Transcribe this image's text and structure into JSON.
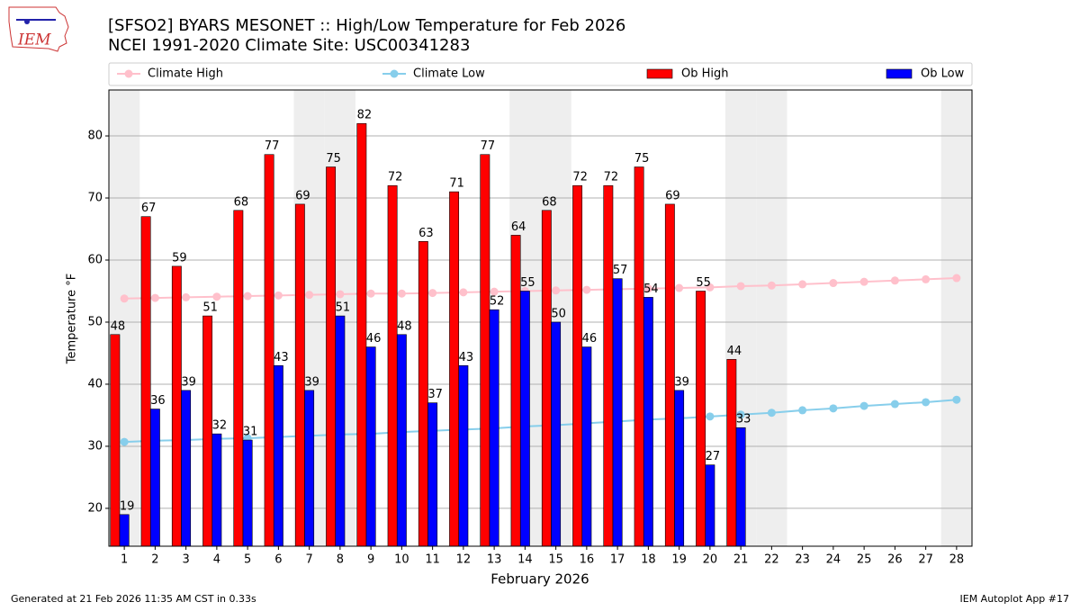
{
  "logo_text": "IEM",
  "footer": {
    "left": "Generated at 21 Feb 2026 11:35 AM CST in 0.33s",
    "right": "IEM Autoplot App #17"
  },
  "chart_data": {
    "type": "bar",
    "title": "[SFSO2] BYARS MESONET :: High/Low Temperature for Feb 2026",
    "subtitle": "NCEI 1991-2020 Climate Site: USC00341283",
    "x_label": "February 2026",
    "y_label": "Temperature °F",
    "x": [
      1,
      2,
      3,
      4,
      5,
      6,
      7,
      8,
      9,
      10,
      11,
      12,
      13,
      14,
      15,
      16,
      17,
      18,
      19,
      20,
      21,
      22,
      23,
      24,
      25,
      26,
      27,
      28
    ],
    "xlim": [
      0.5,
      28.5
    ],
    "xticks": [
      1,
      2,
      3,
      4,
      5,
      6,
      7,
      8,
      9,
      10,
      11,
      12,
      13,
      14,
      15,
      16,
      17,
      18,
      19,
      20,
      21,
      22,
      23,
      24,
      25,
      26,
      27,
      28
    ],
    "ylim": [
      13.9,
      87.4
    ],
    "yticks": [
      20,
      30,
      40,
      50,
      60,
      70,
      80
    ],
    "grid": true,
    "shaded_days": [
      1,
      7,
      8,
      14,
      15,
      21,
      22,
      28
    ],
    "series": [
      {
        "name": "Climate High",
        "type": "line",
        "color": "#ffc0cb",
        "values": [
          53.8,
          53.9,
          54.0,
          54.1,
          54.2,
          54.3,
          54.4,
          54.5,
          54.6,
          54.6,
          54.7,
          54.8,
          54.9,
          55.0,
          55.1,
          55.2,
          55.3,
          55.4,
          55.5,
          55.6,
          55.8,
          55.9,
          56.1,
          56.3,
          56.5,
          56.7,
          56.9,
          57.1
        ]
      },
      {
        "name": "Climate Low",
        "type": "line",
        "color": "#87ceeb",
        "values": [
          30.7,
          30.9,
          31.0,
          31.2,
          31.3,
          31.5,
          31.7,
          31.9,
          32.0,
          32.3,
          32.5,
          32.7,
          32.9,
          33.2,
          33.4,
          33.7,
          34.0,
          34.3,
          34.5,
          34.8,
          35.1,
          35.4,
          35.8,
          36.1,
          36.5,
          36.8,
          37.1,
          37.5
        ]
      },
      {
        "name": "Ob High",
        "type": "bar",
        "color": "#ff0000",
        "values": [
          48,
          67,
          59,
          51,
          68,
          77,
          69,
          75,
          82,
          72,
          63,
          71,
          77,
          64,
          68,
          72,
          72,
          75,
          69,
          55,
          44,
          null,
          null,
          null,
          null,
          null,
          null,
          null
        ]
      },
      {
        "name": "Ob Low",
        "type": "bar",
        "color": "#0000ff",
        "values": [
          19,
          36,
          39,
          32,
          31,
          43,
          39,
          51,
          46,
          48,
          37,
          43,
          52,
          55,
          50,
          46,
          57,
          54,
          39,
          27,
          33,
          null,
          null,
          null,
          null,
          null,
          null,
          null
        ]
      }
    ]
  }
}
